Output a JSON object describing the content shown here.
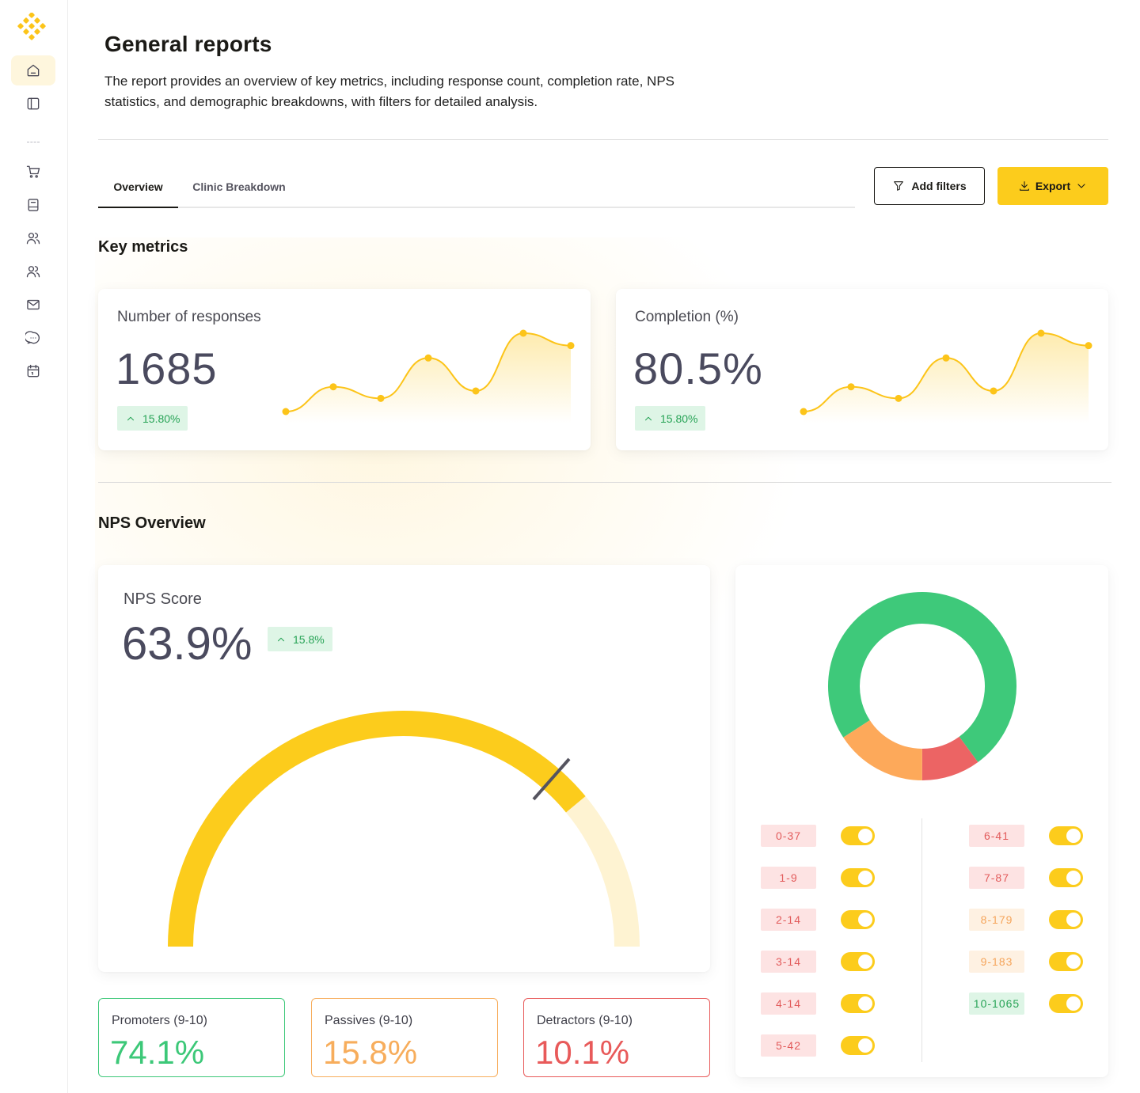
{
  "header": {
    "title": "General reports",
    "description": "The report provides an overview of key metrics, including response count, completion rate, NPS statistics, and demographic breakdowns, with filters for detailed analysis."
  },
  "tabs": [
    {
      "label": "Overview",
      "active": true
    },
    {
      "label": "Clinic Breakdown",
      "active": false
    }
  ],
  "actions": {
    "add_filters": "Add filters",
    "export": "Export"
  },
  "sections": {
    "key_metrics": "Key metrics",
    "nps_overview": "NPS Overview"
  },
  "metrics": [
    {
      "label": "Number of responses",
      "value": "1685",
      "change": "15.80%",
      "trend": [
        10,
        40,
        26,
        75,
        35,
        105,
        90
      ]
    },
    {
      "label": "Completion (%)",
      "value": "80.5%",
      "change": "15.80%",
      "trend": [
        10,
        40,
        26,
        75,
        35,
        105,
        90
      ]
    }
  ],
  "nps": {
    "label": "NPS Score",
    "value": "63.9%",
    "change": "15.8%",
    "gauge_fraction": 0.78,
    "marker_fraction": 0.73
  },
  "breakdown": [
    {
      "label": "Promoters (9-10)",
      "value": "74.1%",
      "color": "#3cc878"
    },
    {
      "label": "Passives (9-10)",
      "value": "15.8%",
      "color": "#f7ad5c"
    },
    {
      "label": "Detractors (9-10)",
      "value": "10.1%",
      "color": "#e85a5a"
    }
  ],
  "chart_data": {
    "type": "pie",
    "variant": "donut",
    "slices": [
      {
        "label": "Promoters",
        "value": 74.1,
        "color": "#3ec97a"
      },
      {
        "label": "Detractors",
        "value": 10.1,
        "color": "#ec6464"
      },
      {
        "label": "Passives",
        "value": 15.8,
        "color": "#fda95a"
      }
    ]
  },
  "score_filters": {
    "left": [
      {
        "label": "0-37",
        "tone": "red",
        "on": true
      },
      {
        "label": "1-9",
        "tone": "red",
        "on": true
      },
      {
        "label": "2-14",
        "tone": "red",
        "on": true
      },
      {
        "label": "3-14",
        "tone": "red",
        "on": true
      },
      {
        "label": "4-14",
        "tone": "red",
        "on": true
      },
      {
        "label": "5-42",
        "tone": "red",
        "on": true
      }
    ],
    "right": [
      {
        "label": "6-41",
        "tone": "red",
        "on": true
      },
      {
        "label": "7-87",
        "tone": "red",
        "on": true
      },
      {
        "label": "8-179",
        "tone": "orange",
        "on": true
      },
      {
        "label": "9-183",
        "tone": "orange",
        "on": true
      },
      {
        "label": "10-1065",
        "tone": "green",
        "on": true
      }
    ]
  },
  "colors": {
    "accent": "#fccc1c",
    "accent_light": "#fef3d2",
    "ink": "#4a4a5e"
  }
}
